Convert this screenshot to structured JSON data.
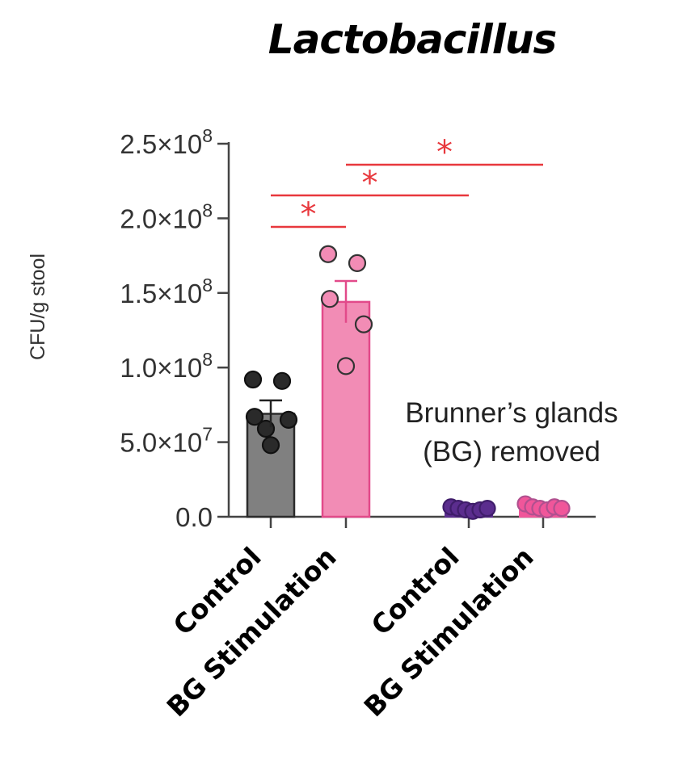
{
  "chart_data": {
    "type": "bar",
    "title": "Lactobacillus",
    "ylabel": "CFU/g stool",
    "xlabel": "",
    "ylim": [
      0,
      250000000
    ],
    "yticks": [
      {
        "value": 0,
        "label": "0.0"
      },
      {
        "value": 50000000,
        "label": "5.0×10",
        "exp": "7"
      },
      {
        "value": 100000000,
        "label": "1.0×10",
        "exp": "8"
      },
      {
        "value": 150000000,
        "label": "1.5×10",
        "exp": "8"
      },
      {
        "value": 200000000,
        "label": "2.0×10",
        "exp": "8"
      },
      {
        "value": 250000000,
        "label": "2.5×10",
        "exp": "8"
      }
    ],
    "categories": [
      "Control",
      "BG Stimulation",
      "Control",
      "BG Stimulation"
    ],
    "bars": [
      {
        "category": "Control",
        "value": 69000000,
        "sem": 9000000,
        "color": "#808080",
        "points": [
          92000000,
          91000000,
          67000000,
          65000000,
          48000000,
          59000000
        ]
      },
      {
        "category": "BG Stimulation",
        "value": 144000000,
        "sem": 14000000,
        "color": "#f28cb5",
        "points": [
          176000000,
          170000000,
          146000000,
          129000000,
          101000000
        ]
      },
      {
        "category": "Control",
        "value": 3000000,
        "sem": 1000000,
        "color": "#5b2d8e",
        "points": [
          5000000,
          4000000,
          3000000,
          2000000,
          3000000,
          4000000
        ]
      },
      {
        "category": "BG Stimulation",
        "value": 4000000,
        "sem": 1000000,
        "color": "#f0569a",
        "points": [
          7000000,
          5000000,
          4000000,
          3000000,
          5000000,
          4000000
        ]
      }
    ],
    "group_annotation": [
      "Brunner’s glands",
      "(BG) removed"
    ],
    "significance": [
      {
        "from": 0,
        "to": 1,
        "label": "*"
      },
      {
        "from": 0,
        "to": 2,
        "label": "*"
      },
      {
        "from": 1,
        "to": 3,
        "label": "*"
      }
    ],
    "colors": {
      "sig": "#e8383d",
      "axis": "#444444"
    }
  }
}
